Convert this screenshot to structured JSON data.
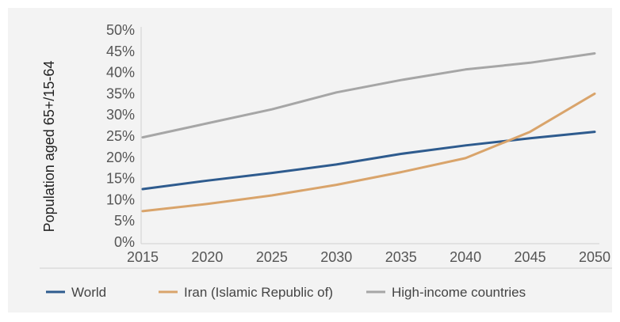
{
  "chart_data": {
    "type": "line",
    "title": "",
    "xlabel": "",
    "ylabel": "Population aged 65+/15-64",
    "x": [
      2015,
      2020,
      2025,
      2030,
      2035,
      2040,
      2045,
      2050
    ],
    "xlim": [
      2015,
      2050
    ],
    "ylim": [
      0,
      50
    ],
    "yticks": [
      0,
      5,
      10,
      15,
      20,
      25,
      30,
      35,
      40,
      45,
      50
    ],
    "ytick_labels": [
      "0%",
      "5%",
      "10%",
      "15%",
      "20%",
      "25%",
      "30%",
      "35%",
      "40%",
      "45%",
      "50%"
    ],
    "xtick_labels": [
      "2015",
      "2020",
      "2025",
      "2030",
      "2035",
      "2040",
      "2045",
      "2050"
    ],
    "grid": false,
    "legend_position": "bottom",
    "series": [
      {
        "name": "World",
        "color": "#2e5b8e",
        "values": [
          12.5,
          14.5,
          16.3,
          18.3,
          20.8,
          22.8,
          24.5,
          26.0
        ]
      },
      {
        "name": "Iran (Islamic Republic of)",
        "color": "#d9a46b",
        "values": [
          7.3,
          9.0,
          11.0,
          13.5,
          16.5,
          19.8,
          26.0,
          35.0
        ]
      },
      {
        "name": "High-income countries",
        "color": "#a6a6a6",
        "values": [
          24.7,
          28.0,
          31.3,
          35.3,
          38.2,
          40.7,
          42.3,
          44.5
        ]
      }
    ]
  }
}
